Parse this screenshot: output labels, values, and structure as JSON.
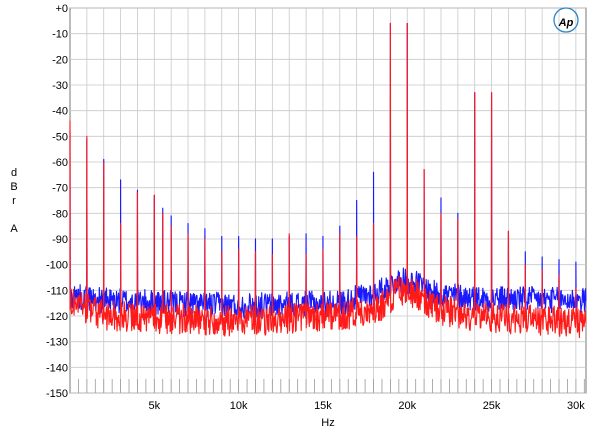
{
  "chart_data": {
    "type": "line",
    "title": "",
    "xlabel": "Hz",
    "ylabel_letters": [
      "d",
      "B",
      "r",
      "A"
    ],
    "xlim": [
      0,
      30600
    ],
    "ylim": [
      -150,
      0
    ],
    "grid": true,
    "x_ticks": [
      {
        "value": 5000,
        "label": "5k"
      },
      {
        "value": 10000,
        "label": "10k"
      },
      {
        "value": 15000,
        "label": "15k"
      },
      {
        "value": 20000,
        "label": "20k"
      },
      {
        "value": 25000,
        "label": "25k"
      },
      {
        "value": 30000,
        "label": "30k"
      }
    ],
    "y_ticks": [
      {
        "value": 0,
        "label": "+0"
      },
      {
        "value": -10,
        "label": "-10"
      },
      {
        "value": -20,
        "label": "-20"
      },
      {
        "value": -30,
        "label": "-30"
      },
      {
        "value": -40,
        "label": "-40"
      },
      {
        "value": -50,
        "label": "-50"
      },
      {
        "value": -60,
        "label": "-60"
      },
      {
        "value": -70,
        "label": "-70"
      },
      {
        "value": -80,
        "label": "-80"
      },
      {
        "value": -90,
        "label": "-90"
      },
      {
        "value": -100,
        "label": "-100"
      },
      {
        "value": -110,
        "label": "-110"
      },
      {
        "value": -120,
        "label": "-120"
      },
      {
        "value": -130,
        "label": "-130"
      },
      {
        "value": -140,
        "label": "-140"
      },
      {
        "value": -150,
        "label": "-150"
      }
    ],
    "series": [
      {
        "color": "#1a1aff",
        "noise_floor": [
          [
            0,
            -112
          ],
          [
            2000,
            -114
          ],
          [
            10000,
            -116
          ],
          [
            16000,
            -115
          ],
          [
            18500,
            -110
          ],
          [
            19500,
            -106
          ],
          [
            20500,
            -107
          ],
          [
            21500,
            -111
          ],
          [
            24000,
            -113
          ],
          [
            30600,
            -114
          ]
        ],
        "noise_spread": 5,
        "peaks": [
          [
            0,
            -48
          ],
          [
            1000,
            -51
          ],
          [
            2000,
            -59
          ],
          [
            3000,
            -67
          ],
          [
            4000,
            -71
          ],
          [
            5000,
            -73
          ],
          [
            5500,
            -78
          ],
          [
            6000,
            -81
          ],
          [
            7000,
            -84
          ],
          [
            8000,
            -86
          ],
          [
            9000,
            -89
          ],
          [
            10000,
            -89
          ],
          [
            11000,
            -90
          ],
          [
            12000,
            -90
          ],
          [
            13000,
            -89
          ],
          [
            14000,
            -88
          ],
          [
            15000,
            -89
          ],
          [
            16000,
            -85
          ],
          [
            17000,
            -75
          ],
          [
            18000,
            -64
          ],
          [
            19000,
            -6
          ],
          [
            20000,
            -6
          ],
          [
            21000,
            -63
          ],
          [
            22000,
            -74
          ],
          [
            23000,
            -80
          ],
          [
            24000,
            -33
          ],
          [
            25000,
            -33
          ],
          [
            26000,
            -87
          ],
          [
            27000,
            -95
          ],
          [
            28000,
            -97
          ],
          [
            29000,
            -98
          ],
          [
            30000,
            -99
          ]
        ]
      },
      {
        "color": "#ff1a1a",
        "noise_floor": [
          [
            0,
            -114
          ],
          [
            2000,
            -120
          ],
          [
            6000,
            -121
          ],
          [
            10000,
            -122
          ],
          [
            16000,
            -120
          ],
          [
            18500,
            -116
          ],
          [
            19500,
            -110
          ],
          [
            20500,
            -111
          ],
          [
            21500,
            -117
          ],
          [
            24000,
            -120
          ],
          [
            30600,
            -123
          ]
        ],
        "noise_spread": 6,
        "peaks": [
          [
            0,
            -44
          ],
          [
            1000,
            -50
          ],
          [
            2000,
            -60
          ],
          [
            3000,
            -84
          ],
          [
            4000,
            -72
          ],
          [
            5000,
            -73
          ],
          [
            5500,
            -80
          ],
          [
            6000,
            -85
          ],
          [
            7000,
            -88
          ],
          [
            8000,
            -90
          ],
          [
            9000,
            -95
          ],
          [
            10000,
            -94
          ],
          [
            11000,
            -95
          ],
          [
            12000,
            -96
          ],
          [
            13000,
            -88
          ],
          [
            14000,
            -96
          ],
          [
            15000,
            -94
          ],
          [
            16000,
            -88
          ],
          [
            17000,
            -89
          ],
          [
            18000,
            -84
          ],
          [
            19000,
            -6
          ],
          [
            20000,
            -6
          ],
          [
            21000,
            -63
          ],
          [
            22000,
            -80
          ],
          [
            23000,
            -82
          ],
          [
            24000,
            -33
          ],
          [
            25000,
            -33
          ],
          [
            26000,
            -87
          ],
          [
            27000,
            -100
          ],
          [
            28000,
            -102
          ],
          [
            29000,
            -104
          ],
          [
            30000,
            -109
          ]
        ]
      }
    ]
  },
  "logo": {
    "text": "Ap",
    "name": "audio-precision-logo"
  }
}
